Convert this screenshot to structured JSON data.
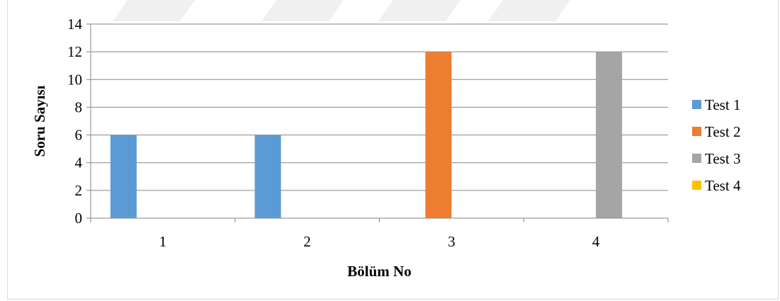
{
  "chart_data": {
    "type": "bar",
    "categories": [
      "1",
      "2",
      "3",
      "4"
    ],
    "series": [
      {
        "name": "Test 1",
        "color": "#5b9bd5",
        "values": [
          6,
          6,
          0,
          0
        ]
      },
      {
        "name": "Test 2",
        "color": "#ed7d31",
        "values": [
          0,
          0,
          12,
          0
        ]
      },
      {
        "name": "Test 3",
        "color": "#a5a5a5",
        "values": [
          0,
          0,
          0,
          12
        ]
      },
      {
        "name": "Test 4",
        "color": "#ffc000",
        "values": [
          0,
          0,
          0,
          0
        ]
      }
    ],
    "xlabel": "Bölüm No",
    "ylabel": "Soru Sayısı",
    "ylim": [
      0,
      14
    ],
    "yticks": [
      0,
      2,
      4,
      6,
      8,
      10,
      12,
      14
    ],
    "grid": true,
    "legend_position": "right"
  }
}
